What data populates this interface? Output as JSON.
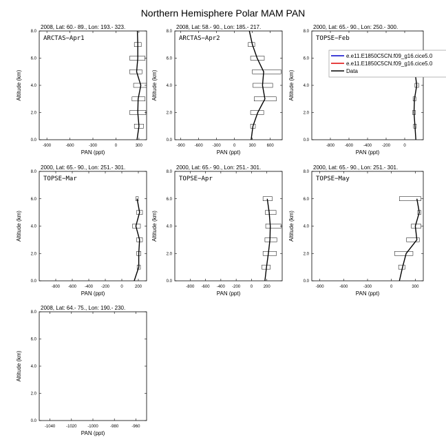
{
  "figure": {
    "title": "Northern Hemisphere Polar MAM PAN"
  },
  "legend": {
    "entries": [
      {
        "label": "e.e11.E1850C5CN.f09_g16.cice5.0",
        "color": "#0000cc"
      },
      {
        "label": "e.e11.E1850C5CN.f09_g16.cice5.0",
        "color": "#dd0000"
      },
      {
        "label": "Data",
        "color": "#000000"
      }
    ]
  },
  "chart_data": [
    {
      "type": "line",
      "panel_label": "ARCTAS−Apr1",
      "header": "2008, Lat:  60.- 89., Lon: 193.- 323.",
      "xlabel": "PAN (ppt)",
      "ylabel": "Altitude (km)",
      "xlim": [
        -1000,
        400
      ],
      "xticks": [
        -900,
        -600,
        -300,
        0,
        300
      ],
      "xtick_labels": [
        "-900",
        "-600",
        "-300",
        "0",
        "300"
      ],
      "ylim": [
        0,
        8
      ],
      "yticks": [
        0,
        2,
        4,
        6,
        8
      ],
      "ytick_labels": [
        "0.0",
        "2.0",
        "4.0",
        "6.0",
        "8.0"
      ],
      "grid": false,
      "series": [
        {
          "name": "Data",
          "color": "#000000",
          "x": [
            275,
            300,
            285,
            290,
            325,
            270,
            285,
            285,
            280
          ],
          "y": [
            0,
            1,
            2,
            3,
            4,
            5,
            6,
            7,
            8
          ]
        }
      ],
      "ranges": [
        {
          "y": 1,
          "low": 240,
          "high": 360
        },
        {
          "y": 2,
          "low": 180,
          "high": 390
        },
        {
          "y": 3,
          "low": 210,
          "high": 380
        },
        {
          "y": 4,
          "low": 230,
          "high": 420
        },
        {
          "y": 5,
          "low": 180,
          "high": 340
        },
        {
          "y": 6,
          "low": 180,
          "high": 380
        },
        {
          "y": 7,
          "low": 240,
          "high": 330
        }
      ]
    },
    {
      "type": "line",
      "panel_label": "ARCTAS−Apr2",
      "header": "2008, Lat:  58.- 90., Lon: 185.- 217.",
      "xlabel": "PAN (ppt)",
      "ylabel": "Altitude (km)",
      "xlim": [
        -1000,
        800
      ],
      "xticks": [
        -900,
        -600,
        -300,
        0,
        300,
        600
      ],
      "xtick_labels": [
        "-900",
        "-600",
        "-300",
        "0",
        "300",
        "600"
      ],
      "ylim": [
        0,
        8
      ],
      "yticks": [
        0,
        2,
        4,
        6,
        8
      ],
      "ytick_labels": [
        "0.0",
        "2.0",
        "4.0",
        "6.0",
        "8.0"
      ],
      "grid": false,
      "series": [
        {
          "name": "Data",
          "color": "#000000",
          "x": [
            280,
            310,
            390,
            510,
            470,
            490,
            380,
            300,
            250
          ],
          "y": [
            0,
            1,
            2,
            3,
            4,
            5,
            6,
            7,
            8
          ]
        }
      ],
      "ranges": [
        {
          "y": 1,
          "low": 270,
          "high": 350
        },
        {
          "y": 2,
          "low": 270,
          "high": 490
        },
        {
          "y": 3,
          "low": 330,
          "high": 700
        },
        {
          "y": 4,
          "low": 310,
          "high": 640
        },
        {
          "y": 5,
          "low": 300,
          "high": 780
        },
        {
          "y": 6,
          "low": 270,
          "high": 500
        },
        {
          "y": 7,
          "low": 230,
          "high": 340
        }
      ]
    },
    {
      "type": "line",
      "panel_label": "TOPSE−Feb",
      "header": "2000, Lat:  65.- 90., Lon: 250.- 300.",
      "xlabel": "PAN (ppt)",
      "ylabel": "Altitude (km)",
      "xlim": [
        -1000,
        200
      ],
      "xticks": [
        -800,
        -600,
        -400,
        -200,
        0
      ],
      "xtick_labels": [
        "-800",
        "-600",
        "-400",
        "-200",
        "0"
      ],
      "ylim": [
        0,
        8
      ],
      "yticks": [
        0,
        2,
        4,
        6,
        8
      ],
      "ytick_labels": [
        "0.0",
        "2.0",
        "4.0",
        "6.0",
        "8.0"
      ],
      "grid": false,
      "series": [
        {
          "name": "Data",
          "color": "#000000",
          "x": [
            120,
            110,
            100,
            105,
            130,
            110,
            100
          ],
          "y": [
            0,
            1,
            2,
            3,
            4,
            5,
            6
          ]
        }
      ],
      "ranges": [
        {
          "y": 1,
          "low": 95,
          "high": 125
        },
        {
          "y": 2,
          "low": 85,
          "high": 115
        },
        {
          "y": 3,
          "low": 90,
          "high": 120
        },
        {
          "y": 4,
          "low": 110,
          "high": 150
        },
        {
          "y": 5,
          "low": 95,
          "high": 125
        },
        {
          "y": 6,
          "low": 85,
          "high": 115
        }
      ]
    },
    {
      "type": "line",
      "panel_label": "TOPSE−Mar",
      "header": "2000, Lat:  65.- 90., Lon: 251.- 301.",
      "xlabel": "PAN (ppt)",
      "ylabel": "Altitude (km)",
      "xlim": [
        -1000,
        300
      ],
      "xticks": [
        -800,
        -600,
        -400,
        -200,
        0,
        200
      ],
      "xtick_labels": [
        "-800",
        "-600",
        "-400",
        "-200",
        "0",
        "200"
      ],
      "ylim": [
        0,
        8
      ],
      "yticks": [
        0,
        2,
        4,
        6,
        8
      ],
      "ytick_labels": [
        "0.0",
        "2.0",
        "4.0",
        "6.0",
        "8.0"
      ],
      "grid": false,
      "series": [
        {
          "name": "Data",
          "color": "#000000",
          "x": [
            150,
            205,
            205,
            215,
            170,
            215,
            185
          ],
          "y": [
            0,
            1,
            2,
            3,
            4,
            5,
            6
          ]
        }
      ],
      "ranges": [
        {
          "y": 1,
          "low": 185,
          "high": 225
        },
        {
          "y": 2,
          "low": 180,
          "high": 230
        },
        {
          "y": 3,
          "low": 180,
          "high": 250
        },
        {
          "y": 4,
          "low": 130,
          "high": 225
        },
        {
          "y": 5,
          "low": 180,
          "high": 250
        },
        {
          "y": 6,
          "low": 170,
          "high": 200
        }
      ]
    },
    {
      "type": "line",
      "panel_label": "TOPSE−Apr",
      "header": "2000, Lat:  65.- 90., Lon: 251.- 301.",
      "xlabel": "PAN (ppt)",
      "ylabel": "Altitude (km)",
      "xlim": [
        -1000,
        400
      ],
      "xticks": [
        -800,
        -600,
        -400,
        -200,
        0,
        200
      ],
      "xtick_labels": [
        "-800",
        "-600",
        "-400",
        "-200",
        "0",
        "200"
      ],
      "ylim": [
        0,
        8
      ],
      "yticks": [
        0,
        2,
        4,
        6,
        8
      ],
      "ytick_labels": [
        "0.0",
        "2.0",
        "4.0",
        "6.0",
        "8.0"
      ],
      "grid": false,
      "series": [
        {
          "name": "Data",
          "color": "#000000",
          "x": [
            175,
            195,
            220,
            240,
            245,
            230,
            205
          ],
          "y": [
            0,
            1,
            2,
            3,
            4,
            5,
            6
          ]
        }
      ],
      "ranges": [
        {
          "y": 1,
          "low": 135,
          "high": 245
        },
        {
          "y": 2,
          "low": 150,
          "high": 325
        },
        {
          "y": 3,
          "low": 175,
          "high": 330
        },
        {
          "y": 4,
          "low": 185,
          "high": 385
        },
        {
          "y": 5,
          "low": 180,
          "high": 320
        },
        {
          "y": 6,
          "low": 150,
          "high": 270
        }
      ]
    },
    {
      "type": "line",
      "panel_label": "TOPSE−May",
      "header": "2000, Lat:  65.- 90., Lon: 251.- 301.",
      "xlabel": "PAN (ppt)",
      "ylabel": "Altitude (km)",
      "xlim": [
        -1000,
        400
      ],
      "xticks": [
        -900,
        -600,
        -300,
        0,
        300
      ],
      "xtick_labels": [
        "-900",
        "-600",
        "-300",
        "0",
        "300"
      ],
      "ylim": [
        0,
        8
      ],
      "yticks": [
        0,
        2,
        4,
        6,
        8
      ],
      "ytick_labels": [
        "0.0",
        "2.0",
        "4.0",
        "6.0",
        "8.0"
      ],
      "grid": false,
      "series": [
        {
          "name": "Data",
          "color": "#000000",
          "x": [
            100,
            140,
            185,
            320,
            300,
            350,
            320
          ],
          "y": [
            0,
            1,
            2,
            3,
            4,
            5,
            6
          ]
        }
      ],
      "ranges": [
        {
          "y": 1,
          "low": 90,
          "high": 170
        },
        {
          "y": 2,
          "low": 40,
          "high": 270
        },
        {
          "y": 3,
          "low": 190,
          "high": 350
        },
        {
          "y": 4,
          "low": 250,
          "high": 370
        },
        {
          "y": 5,
          "low": 330,
          "high": 370
        },
        {
          "y": 6,
          "low": 100,
          "high": 370
        }
      ]
    },
    {
      "type": "line",
      "panel_label": "",
      "header": "2008, Lat:  64.- 75., Lon: 190.- 230.",
      "xlabel": "PAN (ppt)",
      "ylabel": "Altitude (km)",
      "xlim": [
        -1050,
        -950
      ],
      "xticks": [
        -1040,
        -1020,
        -1000,
        -980,
        -960
      ],
      "xtick_labels": [
        "-1040",
        "-1020",
        "-1000",
        "-980",
        "-960"
      ],
      "ylim": [
        0,
        8
      ],
      "yticks": [
        0,
        2,
        4,
        6,
        8
      ],
      "ytick_labels": [
        "0.0",
        "2.0",
        "4.0",
        "6.0",
        "8.0"
      ],
      "grid": false,
      "series": [],
      "ranges": []
    }
  ]
}
